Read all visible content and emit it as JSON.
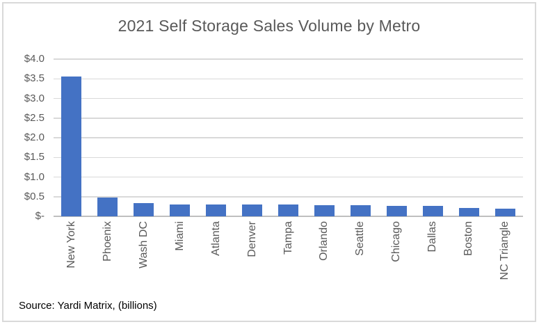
{
  "chart": {
    "source_note": "Source: Yardi Matrix, (billions)",
    "colors": {
      "bar": "#4472C4",
      "gridline": "#D9D9D9",
      "axis_line": "#BFBFBF",
      "title_text": "#595959",
      "tick_text": "#595959",
      "source_text": "#000000",
      "frame_border": "#D9D9D9",
      "background": "#FFFFFF"
    }
  },
  "chart_data": {
    "type": "bar",
    "title": "2021 Self Storage Sales Volume by Metro",
    "categories": [
      "New York",
      "Phoenix",
      "Wash DC",
      "Miami",
      "Atlanta",
      "Denver",
      "Tampa",
      "Orlando",
      "Seattle",
      "Chicago",
      "Dallas",
      "Boston",
      "NC Triangle"
    ],
    "values": [
      3.55,
      0.48,
      0.34,
      0.31,
      0.3,
      0.3,
      0.3,
      0.28,
      0.28,
      0.27,
      0.26,
      0.22,
      0.2
    ],
    "units": "billions",
    "xlabel": "",
    "ylabel": "",
    "ylim": [
      0,
      4.0
    ],
    "grid": true,
    "legend": false,
    "x_tick_rotation_degrees": 90,
    "y_ticks": [
      {
        "value": 4.0,
        "label": "$4.0"
      },
      {
        "value": 3.5,
        "label": "$3.5"
      },
      {
        "value": 3.0,
        "label": "$3.0"
      },
      {
        "value": 2.5,
        "label": "$2.5"
      },
      {
        "value": 2.0,
        "label": "$2.0"
      },
      {
        "value": 1.5,
        "label": "$1.5"
      },
      {
        "value": 1.0,
        "label": "$1.0"
      },
      {
        "value": 0.5,
        "label": "$0.5"
      },
      {
        "value": 0.0,
        "label": "$-"
      }
    ]
  }
}
